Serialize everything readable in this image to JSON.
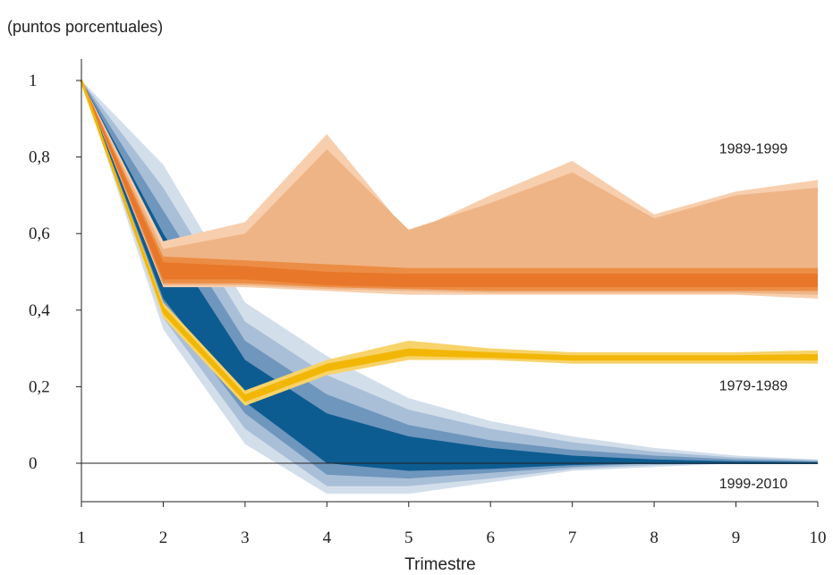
{
  "chart_data": {
    "type": "area",
    "unit_label": "(puntos porcentuales)",
    "xlabel": "Trimestre",
    "x": [
      1,
      2,
      3,
      4,
      5,
      6,
      7,
      8,
      9,
      10
    ],
    "xlim": [
      1,
      10
    ],
    "ylim": [
      -0.1,
      1.05
    ],
    "yticks": [
      0,
      0.2,
      0.4,
      0.6,
      0.8,
      1
    ],
    "ytick_labels": [
      "0",
      "0,2",
      "0,4",
      "0,6",
      "0,8",
      "1"
    ],
    "xtick_labels": [
      "1",
      "2",
      "3",
      "4",
      "5",
      "6",
      "7",
      "8",
      "9",
      "10"
    ],
    "zero_line": true,
    "series": [
      {
        "name": "1999-2010",
        "color": "#0d5c91",
        "median": [
          1,
          0.46,
          0.2,
          0.05,
          0.0,
          -0.01,
          0.0,
          0.0,
          0.0,
          0.0
        ],
        "bands": [
          {
            "lower": [
              1,
              0.35,
              0.05,
              -0.08,
              -0.08,
              -0.05,
              -0.02,
              -0.01,
              0.0,
              0.0
            ],
            "upper": [
              1,
              0.78,
              0.42,
              0.28,
              0.17,
              0.11,
              0.07,
              0.04,
              0.02,
              0.01
            ]
          },
          {
            "lower": [
              1,
              0.38,
              0.09,
              -0.06,
              -0.06,
              -0.04,
              -0.015,
              -0.005,
              0.0,
              0.0
            ],
            "upper": [
              1,
              0.72,
              0.37,
              0.23,
              0.14,
              0.09,
              0.055,
              0.03,
              0.015,
              0.008
            ]
          },
          {
            "lower": [
              1,
              0.41,
              0.13,
              -0.03,
              -0.04,
              -0.025,
              -0.01,
              0.0,
              0.0,
              0.0
            ],
            "upper": [
              1,
              0.66,
              0.32,
              0.18,
              0.1,
              0.06,
              0.035,
              0.02,
              0.01,
              0.005
            ]
          },
          {
            "lower": [
              1,
              0.43,
              0.16,
              0.0,
              -0.02,
              -0.015,
              -0.005,
              0.0,
              0.0,
              0.0
            ],
            "upper": [
              1,
              0.6,
              0.27,
              0.13,
              0.07,
              0.04,
              0.02,
              0.01,
              0.005,
              0.003
            ]
          }
        ]
      },
      {
        "name": "1989-1999",
        "color": "#e8772a",
        "median": [
          1,
          0.5,
          0.5,
          0.48,
          0.47,
          0.47,
          0.47,
          0.47,
          0.47,
          0.47
        ],
        "bands": [
          {
            "lower": [
              1,
              0.46,
              0.46,
              0.45,
              0.44,
              0.44,
              0.44,
              0.44,
              0.44,
              0.43
            ],
            "upper": [
              1,
              0.58,
              0.63,
              0.86,
              0.6,
              0.7,
              0.79,
              0.65,
              0.71,
              0.74
            ]
          },
          {
            "lower": [
              1,
              0.465,
              0.465,
              0.455,
              0.45,
              0.445,
              0.445,
              0.445,
              0.445,
              0.44
            ],
            "upper": [
              1,
              0.56,
              0.6,
              0.82,
              0.61,
              0.68,
              0.76,
              0.64,
              0.7,
              0.72
            ]
          },
          {
            "lower": [
              1,
              0.47,
              0.47,
              0.46,
              0.455,
              0.45,
              0.45,
              0.45,
              0.45,
              0.45
            ],
            "upper": [
              1,
              0.54,
              0.53,
              0.52,
              0.51,
              0.51,
              0.51,
              0.51,
              0.51,
              0.51
            ]
          },
          {
            "lower": [
              1,
              0.48,
              0.48,
              0.465,
              0.46,
              0.46,
              0.46,
              0.46,
              0.46,
              0.46
            ],
            "upper": [
              1,
              0.525,
              0.515,
              0.5,
              0.495,
              0.495,
              0.495,
              0.495,
              0.495,
              0.495
            ]
          }
        ]
      },
      {
        "name": "1979-1989",
        "color": "#f2b705",
        "median": [
          1,
          0.4,
          0.17,
          0.25,
          0.29,
          0.28,
          0.275,
          0.275,
          0.275,
          0.275
        ],
        "bands": [
          {
            "lower": [
              1,
              0.38,
              0.15,
              0.23,
              0.27,
              0.27,
              0.26,
              0.26,
              0.26,
              0.26
            ],
            "upper": [
              1,
              0.42,
              0.19,
              0.27,
              0.32,
              0.3,
              0.29,
              0.29,
              0.29,
              0.295
            ]
          },
          {
            "lower": [
              1,
              0.39,
              0.16,
              0.24,
              0.28,
              0.275,
              0.268,
              0.268,
              0.268,
              0.268
            ],
            "upper": [
              1,
              0.41,
              0.18,
              0.26,
              0.3,
              0.29,
              0.282,
              0.282,
              0.282,
              0.285
            ]
          }
        ]
      }
    ]
  }
}
